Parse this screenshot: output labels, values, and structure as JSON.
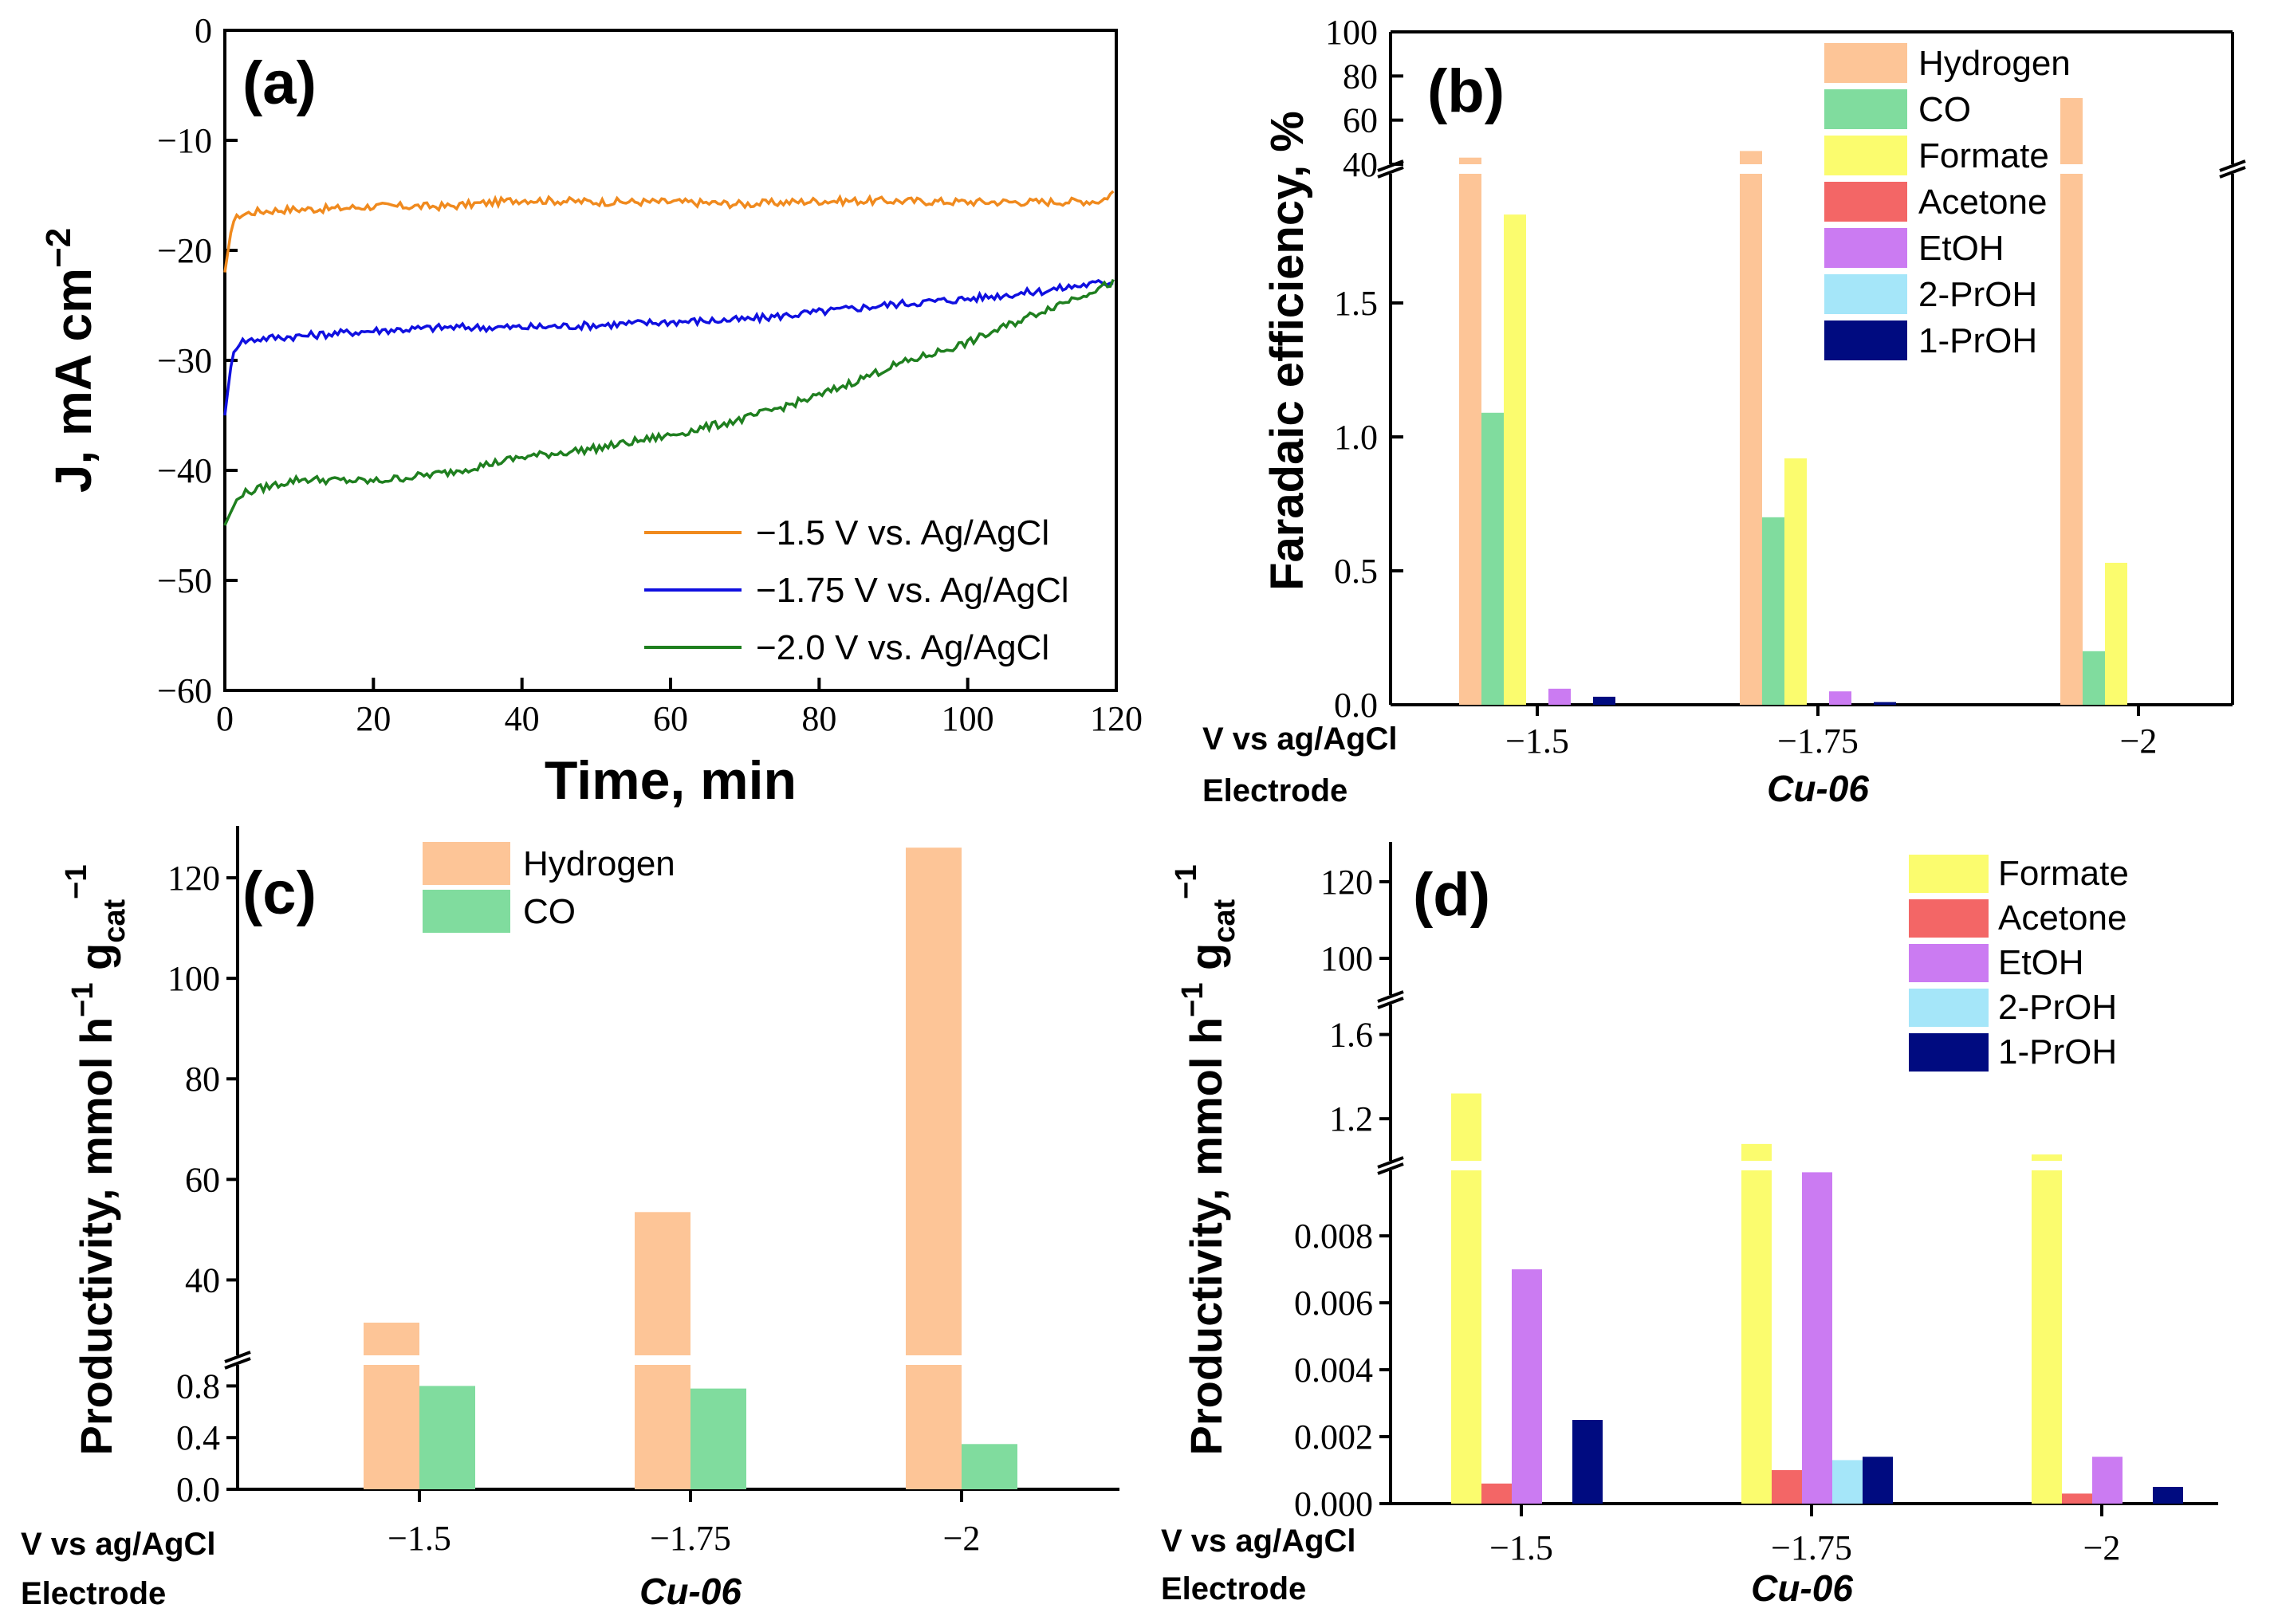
{
  "colors": {
    "Hydrogen": "#FDC597",
    "CO": "#80DC9E",
    "Formate": "#FBFC6E",
    "Acetone": "#F36666",
    "EtOH": "#CB7BF2",
    "2-PrOH": "#A5E6F9",
    "1-PrOH": "#000B80",
    "line_-1.5": "#F08A1E",
    "line_-1.75": "#1010E0",
    "line_-2.0": "#1F7F1F"
  },
  "chart_data": [
    {
      "panel": "(a)",
      "type": "line",
      "xlabel": "Time, min",
      "ylabel": "J, mA cm",
      "ylabel_sup": "−2",
      "xlim": [
        0,
        120
      ],
      "ylim": [
        -60,
        0
      ],
      "xticks": [
        "0",
        "20",
        "40",
        "60",
        "80",
        "100",
        "120"
      ],
      "yticks": [
        "0",
        "−10",
        "−20",
        "−30",
        "−40",
        "−50",
        "−60"
      ],
      "legend_position": "lower-right",
      "series": [
        {
          "name": "−1.5 V vs. Ag/AgCl",
          "key": "line_-1.5",
          "x": [
            0,
            1,
            2,
            4,
            8,
            15,
            20,
            30,
            40,
            50,
            60,
            70,
            80,
            90,
            100,
            110,
            118,
            120
          ],
          "y": [
            -22,
            -17.5,
            -16.8,
            -16.5,
            -16.3,
            -16.2,
            -16.0,
            -16.0,
            -15.4,
            -15.6,
            -15.6,
            -15.8,
            -15.5,
            -15.5,
            -15.6,
            -15.6,
            -15.5,
            -14.5
          ]
        },
        {
          "name": "−1.75 V vs. Ag/AgCl",
          "key": "line_-1.75",
          "x": [
            0,
            1,
            2,
            5,
            10,
            20,
            30,
            40,
            50,
            60,
            70,
            80,
            90,
            100,
            110,
            115,
            120
          ],
          "y": [
            -35,
            -29.5,
            -28.3,
            -28.0,
            -27.8,
            -27.3,
            -27.0,
            -27.0,
            -26.8,
            -26.5,
            -26.3,
            -25.6,
            -24.9,
            -24.4,
            -23.7,
            -23.2,
            -22.8
          ]
        },
        {
          "name": "−2.0 V vs. Ag/AgCl",
          "key": "line_-2.0",
          "x": [
            0,
            1,
            2,
            5,
            10,
            20,
            30,
            40,
            50,
            60,
            70,
            80,
            90,
            100,
            110,
            120
          ],
          "y": [
            -45,
            -43.5,
            -42.2,
            -41.6,
            -40.8,
            -41.0,
            -40.2,
            -38.8,
            -38.0,
            -36.8,
            -35.3,
            -33.2,
            -30.5,
            -28.4,
            -25.5,
            -22.8
          ]
        }
      ]
    },
    {
      "panel": "(b)",
      "type": "bar",
      "ylabel": "Faradaic efficiency, %",
      "categories": [
        "−1.5",
        "−1.75",
        "−2"
      ],
      "row_label_1": "V vs ag/AgCl",
      "row_label_2": "Electrode",
      "electrode": "Cu-06",
      "y_break_lower": [
        0,
        2.0
      ],
      "y_break_upper": [
        40,
        100
      ],
      "yticks_lower": [
        "0.0",
        "0.5",
        "1.0",
        "1.5"
      ],
      "yticks_upper": [
        "40",
        "60",
        "80",
        "100"
      ],
      "series": [
        {
          "name": "Hydrogen",
          "values": [
            43,
            46,
            70
          ]
        },
        {
          "name": "CO",
          "values": [
            1.09,
            0.7,
            0.2
          ]
        },
        {
          "name": "Formate",
          "values": [
            1.83,
            0.92,
            0.53
          ]
        },
        {
          "name": "Acetone",
          "values": [
            0,
            0,
            0
          ]
        },
        {
          "name": "EtOH",
          "values": [
            0.06,
            0.05,
            0
          ]
        },
        {
          "name": "2-PrOH",
          "values": [
            0,
            0,
            0
          ]
        },
        {
          "name": "1-PrOH",
          "values": [
            0.03,
            0.01,
            0
          ]
        }
      ]
    },
    {
      "panel": "(c)",
      "type": "bar",
      "ylabel": "Productivity, mmol h",
      "ylabel_sup": "−1",
      "ylabel_g": "g",
      "ylabel_sub": "cat",
      "ylabel_sup2": "−1",
      "categories": [
        "−1.5",
        "−1.75",
        "−2"
      ],
      "row_label_1": "V vs ag/AgCl",
      "row_label_2": "Electrode",
      "electrode": "Cu-06",
      "y_break_lower": [
        0,
        1.0
      ],
      "y_break_upper": [
        25,
        130
      ],
      "yticks_lower": [
        "0.0",
        "0.4",
        "0.8"
      ],
      "yticks_upper": [
        "40",
        "60",
        "80",
        "100",
        "120"
      ],
      "series": [
        {
          "name": "Hydrogen",
          "values": [
            31.5,
            53.5,
            126
          ]
        },
        {
          "name": "CO",
          "values": [
            0.8,
            0.78,
            0.35
          ]
        }
      ]
    },
    {
      "panel": "(d)",
      "type": "bar",
      "ylabel": "Productivity, mmol h",
      "ylabel_sup": "−1",
      "ylabel_g": "g",
      "ylabel_sub": "cat",
      "ylabel_sup2": "−1",
      "categories": [
        "−1.5",
        "−1.75",
        "−2"
      ],
      "row_label_1": "V vs ag/AgCl",
      "row_label_2": "Electrode",
      "electrode": "Cu-06",
      "y_break_lower": [
        0,
        0.0101
      ],
      "y_break_mid": [
        1.0,
        1.75
      ],
      "y_break_upper": [
        90,
        130
      ],
      "yticks_lower": [
        "0.000",
        "0.002",
        "0.004",
        "0.006",
        "0.008"
      ],
      "yticks_mid": [
        "1.2",
        "1.6"
      ],
      "yticks_upper": [
        "100",
        "120"
      ],
      "series": [
        {
          "name": "Formate",
          "values": [
            1.32,
            1.08,
            1.03
          ]
        },
        {
          "name": "Acetone",
          "values": [
            0.0006,
            0.001,
            0.0003
          ]
        },
        {
          "name": "EtOH",
          "values": [
            0.007,
            0.0099,
            0.0014
          ]
        },
        {
          "name": "2-PrOH",
          "values": [
            0,
            0.0013,
            0
          ]
        },
        {
          "name": "1-PrOH",
          "values": [
            0.0025,
            0.0014,
            0.0005
          ]
        }
      ]
    }
  ]
}
